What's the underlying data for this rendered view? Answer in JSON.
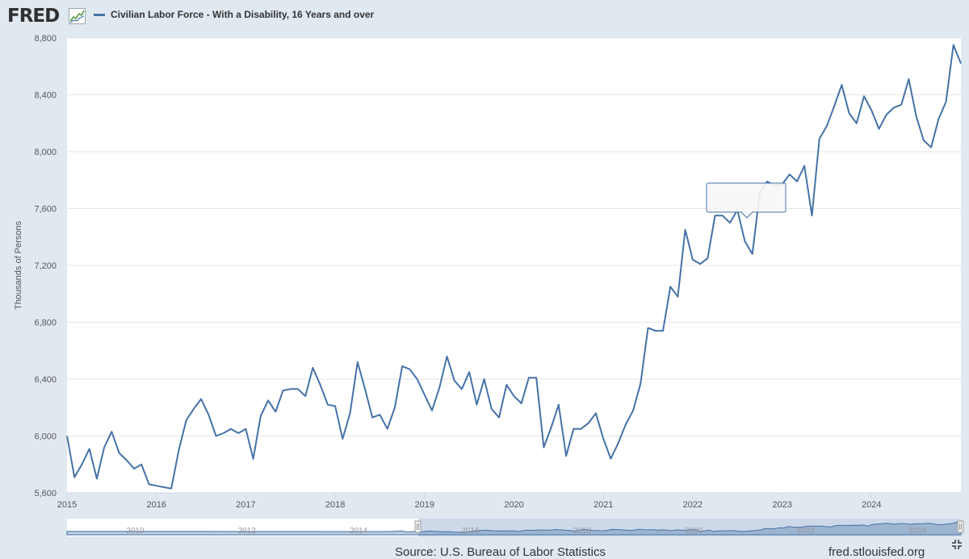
{
  "header": {
    "logo_text": "FRED",
    "series_title": "Civilian Labor Force - With a Disability, 16 Years and over"
  },
  "colors": {
    "line": "#4572a7",
    "background": "#e1e9f0",
    "plot_bg": "#ffffff"
  },
  "chart_data": {
    "type": "line",
    "title": "Civilian Labor Force - With a Disability, 16 Years and over",
    "ylabel": "Thousands of Persons",
    "xlabel": "",
    "ylim": [
      5600,
      8800
    ],
    "yticks": [
      5600,
      6000,
      6400,
      6800,
      7200,
      7600,
      8000,
      8400,
      8800
    ],
    "ytick_labels": [
      "5,600",
      "6,000",
      "6,400",
      "6,800",
      "7,200",
      "7,600",
      "8,000",
      "8,400",
      "8,800"
    ],
    "xlim": [
      2015.0,
      2025.0
    ],
    "xticks": [
      2015,
      2016,
      2017,
      2018,
      2019,
      2020,
      2021,
      2022,
      2023,
      2024
    ],
    "xtick_labels": [
      "2015",
      "2016",
      "2017",
      "2018",
      "2019",
      "2020",
      "2021",
      "2022",
      "2023",
      "2024"
    ],
    "grid": true,
    "series": [
      {
        "name": "Civilian Labor Force - With a Disability, 16 Years and over",
        "start": 2015.0,
        "step": 0.08333,
        "values": [
          6000,
          5710,
          5800,
          5910,
          5700,
          5920,
          6030,
          5880,
          5830,
          5770,
          5800,
          5660,
          5650,
          5640,
          5630,
          5900,
          6110,
          6190,
          6260,
          6150,
          6000,
          6020,
          6050,
          6020,
          6050,
          5840,
          6140,
          6250,
          6170,
          6320,
          6330,
          6330,
          6280,
          6480,
          6360,
          6220,
          6210,
          5980,
          6160,
          6520,
          6330,
          6130,
          6150,
          6050,
          6200,
          6490,
          6470,
          6400,
          6290,
          6180,
          6340,
          6560,
          6390,
          6330,
          6450,
          6220,
          6400,
          6190,
          6130,
          6360,
          6280,
          6230,
          6410,
          6410,
          5920,
          6060,
          6220,
          5860,
          6050,
          6050,
          6090,
          6160,
          5980,
          5840,
          5950,
          6080,
          6180,
          6370,
          6760,
          6740,
          6740,
          7050,
          6980,
          7450,
          7240,
          7210,
          7250,
          7550,
          7550,
          7500,
          7590,
          7370,
          7280,
          7710,
          7790,
          7760,
          7770,
          7840,
          7790,
          7900,
          7550,
          8090,
          8180,
          8320,
          8470,
          8270,
          8200,
          8390,
          8290,
          8160,
          8260,
          8310,
          8330,
          8510,
          8250,
          8080,
          8030,
          8230,
          8350,
          8750,
          8620
        ]
      }
    ],
    "navigator": {
      "labels": [
        "2010",
        "2012",
        "2014",
        "2016",
        "2018",
        "2020",
        "2022",
        "2024"
      ]
    }
  },
  "footer": {
    "source": "Source: U.S. Bureau of Labor Statistics",
    "url": "fred.stlouisfed.org"
  }
}
